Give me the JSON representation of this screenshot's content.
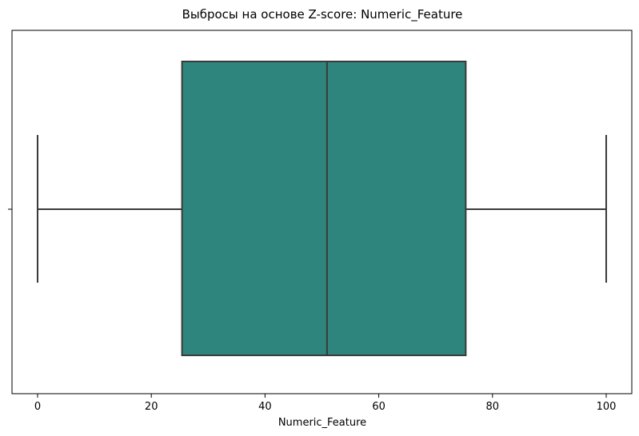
{
  "chart_data": {
    "type": "box",
    "title": "Выбросы на основе Z-score: Numeric_Feature",
    "xlabel": "Numeric_Feature",
    "ylabel": "",
    "xlim": [
      -4.5,
      104.5
    ],
    "xticks": [
      0,
      20,
      40,
      60,
      80,
      100
    ],
    "orientation": "horizontal",
    "grid": false,
    "box": {
      "whisker_low": 0,
      "q1": 25.4,
      "median": 50.9,
      "q3": 75.3,
      "whisker_high": 100
    },
    "colors": {
      "box_fill": "#2e857e",
      "line": "#3a3a3a"
    }
  }
}
